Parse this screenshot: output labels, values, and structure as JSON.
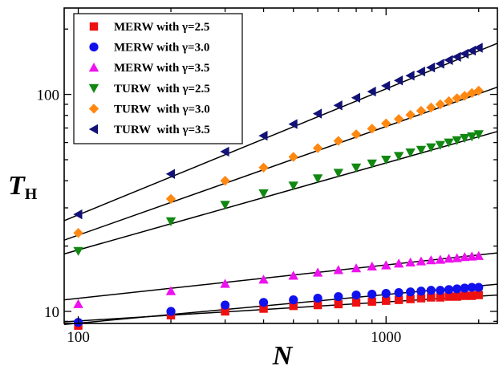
{
  "chart_data": {
    "type": "scatter",
    "xlabel": "N",
    "ylabel": "T",
    "ylabel_subscript": "H",
    "xscale": "log",
    "yscale": "log",
    "xlim": [
      90,
      2300
    ],
    "ylim": [
      8.8,
      250
    ],
    "x_tick_labels": [
      {
        "value": 100,
        "label": "100"
      },
      {
        "value": 1000,
        "label": "1000"
      }
    ],
    "y_tick_labels": [
      {
        "value": 10,
        "label": "10"
      },
      {
        "value": 100,
        "label": "100"
      }
    ],
    "grid": false,
    "legend_position": "top-left",
    "x": [
      100,
      200,
      300,
      400,
      500,
      600,
      700,
      800,
      900,
      1000,
      1100,
      1200,
      1300,
      1400,
      1500,
      1600,
      1700,
      1800,
      1900,
      2000
    ],
    "series": [
      {
        "name": "MERW with γ=2.5",
        "marker": "square",
        "color": "#ee1111",
        "values": [
          8.6,
          9.6,
          10.0,
          10.3,
          10.6,
          10.7,
          10.8,
          11.0,
          11.1,
          11.2,
          11.3,
          11.4,
          11.5,
          11.6,
          11.6,
          11.7,
          11.7,
          11.8,
          11.8,
          11.9
        ]
      },
      {
        "name": "MERW with γ=3.0",
        "marker": "circle",
        "color": "#1111ee",
        "values": [
          8.9,
          10.0,
          10.7,
          11.0,
          11.3,
          11.5,
          11.7,
          11.9,
          12.0,
          12.1,
          12.2,
          12.3,
          12.4,
          12.5,
          12.5,
          12.6,
          12.7,
          12.8,
          12.9,
          12.9
        ]
      },
      {
        "name": "MERW with γ=3.5",
        "marker": "triangle-up",
        "color": "#ee11ee",
        "values": [
          10.8,
          12.4,
          13.4,
          14.0,
          14.6,
          15.1,
          15.5,
          15.8,
          16.1,
          16.3,
          16.6,
          16.8,
          17.0,
          17.2,
          17.3,
          17.5,
          17.6,
          17.8,
          17.9,
          18.0
        ]
      },
      {
        "name": "TURW  with γ=2.5",
        "marker": "triangle-down",
        "color": "#118811",
        "values": [
          19.0,
          26.0,
          31.0,
          35.0,
          38.0,
          41.0,
          43.5,
          46.0,
          48.0,
          50.0,
          52.0,
          54.0,
          55.5,
          57.0,
          58.5,
          60.0,
          61.5,
          63.0,
          64.0,
          65.5
        ]
      },
      {
        "name": "TURW  with γ=3.0",
        "marker": "diamond",
        "color": "#ff8811",
        "values": [
          23.0,
          33.0,
          40.0,
          46.0,
          51.5,
          56.5,
          61.0,
          65.5,
          69.5,
          73.5,
          77.0,
          80.5,
          84.0,
          87.0,
          90.0,
          93.0,
          96.0,
          98.5,
          101.5,
          104.0
        ]
      },
      {
        "name": "TURW  with γ=3.5",
        "marker": "triangle-left",
        "color": "#111177",
        "values": [
          28.0,
          43.0,
          54.5,
          64.5,
          73.0,
          81.5,
          89.0,
          96.5,
          103.0,
          109.5,
          116.0,
          122.0,
          127.5,
          133.0,
          138.5,
          144.0,
          149.0,
          154.0,
          159.0,
          164.0
        ]
      }
    ],
    "fit_lines": [
      {
        "series": "MERW with γ=2.5",
        "y_at_xmin": 8.95,
        "y_at_xmax": 11.9
      },
      {
        "series": "MERW with γ=3.0",
        "y_at_xmin": 8.7,
        "y_at_xmax": 13.35
      },
      {
        "series": "MERW with γ=3.5",
        "y_at_xmin": 11.3,
        "y_at_xmax": 18.6
      },
      {
        "series": "TURW  with γ=2.5",
        "y_at_xmin": 18.4,
        "y_at_xmax": 67.5
      },
      {
        "series": "TURW  with γ=3.0",
        "y_at_xmin": 21.3,
        "y_at_xmax": 108.0
      },
      {
        "series": "TURW  with γ=3.5",
        "y_at_xmin": 26.2,
        "y_at_xmax": 172.0
      }
    ]
  }
}
